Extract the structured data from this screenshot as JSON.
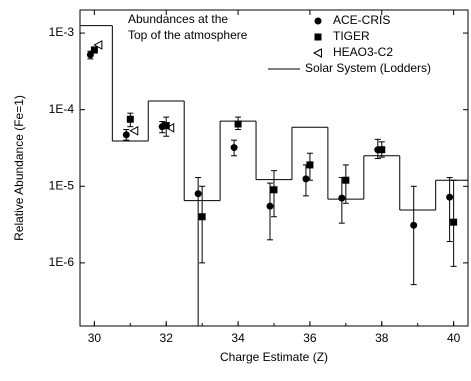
{
  "chart_data": {
    "type": "scatter",
    "annotation": [
      "Abundances at the",
      "Top of the atmosphere"
    ],
    "xlabel": "Charge Estimate (Z)",
    "ylabel": "Relative Abundance (Fe=1)",
    "x": [
      30,
      31,
      32,
      33,
      34,
      35,
      36,
      37,
      38,
      39,
      40
    ],
    "xlim": [
      29.6,
      40.4
    ],
    "xticks": [
      30,
      32,
      34,
      36,
      38,
      40
    ],
    "ylim": [
      1.5e-07,
      0.002
    ],
    "yscale": "log",
    "yticks": [
      {
        "value": 1e-06,
        "label": "1E-6"
      },
      {
        "value": 1e-05,
        "label": "1E-5"
      },
      {
        "value": 0.0001,
        "label": "1E-4"
      },
      {
        "value": 0.001,
        "label": "1E-3"
      }
    ],
    "legend": "upper right",
    "series": [
      {
        "name": "ACE-CRIS",
        "marker": "circle",
        "color": "#000000",
        "values": [
          0.00052,
          4.7e-05,
          6e-05,
          8e-06,
          3.2e-05,
          5.5e-06,
          1.25e-05,
          7e-06,
          3e-05,
          3.1e-06,
          7.2e-06
        ],
        "lower": [
          0.00046,
          4e-05,
          5e-05,
          1.5e-07,
          2.5e-05,
          2e-06,
          7.5e-06,
          3.3e-06,
          2.3e-05,
          5.2e-07,
          1.9e-06
        ],
        "upper": [
          0.00058,
          5.5e-05,
          7e-05,
          1.3e-05,
          4e-05,
          1.1e-05,
          1.9e-05,
          1.3e-05,
          4.1e-05,
          1e-05,
          1.3e-05
        ]
      },
      {
        "name": "TIGER",
        "marker": "square",
        "color": "#000000",
        "values": [
          0.0006,
          7.5e-05,
          6.2e-05,
          4e-06,
          6.5e-05,
          9e-06,
          1.9e-05,
          1.2e-05,
          3e-05,
          null,
          3.4e-06
        ],
        "lower": [
          0.00055,
          6e-05,
          4.5e-05,
          1e-06,
          5.5e-05,
          4e-06,
          1.2e-05,
          6e-06,
          2.4e-05,
          null,
          9e-07
        ],
        "upper": [
          0.00066,
          9e-05,
          8e-05,
          1e-05,
          8e-05,
          1.6e-05,
          2.7e-05,
          1.9e-05,
          3.8e-05,
          null,
          1.2e-05
        ]
      },
      {
        "name": "HEAO3-C2",
        "marker": "triangle",
        "color": "#000000",
        "values": [
          0.0007,
          5.3e-05,
          5.8e-05,
          null,
          null,
          null,
          null,
          null,
          null,
          null,
          null
        ]
      },
      {
        "name": "Solar System (Lodders)",
        "marker": "step",
        "color": "#000000",
        "values": [
          0.00125,
          3.9e-05,
          0.00013,
          6.5e-06,
          7.1e-05,
          1.22e-05,
          5.9e-05,
          6.8e-06,
          2.5e-05,
          4.9e-06,
          1.2e-05
        ]
      }
    ]
  }
}
